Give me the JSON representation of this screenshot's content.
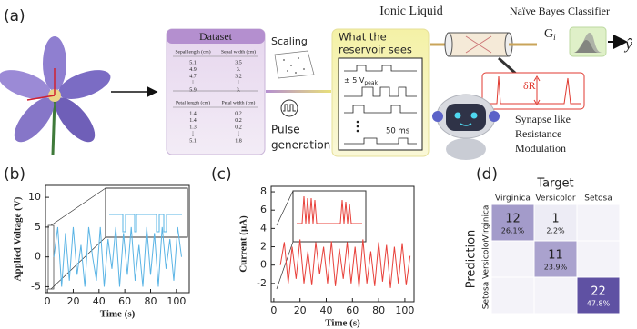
{
  "diagram": {
    "panel_label": "(a)",
    "dataset": {
      "title": "Dataset",
      "sepal_header": [
        "Sepal length (cm)",
        "Sepal width (cm)"
      ],
      "sepal_rows": [
        [
          "5.1",
          "3.5"
        ],
        [
          "4.9",
          "3."
        ],
        [
          "4.7",
          "3.2"
        ],
        [
          "⋮",
          "⋮"
        ],
        [
          "5.9",
          "3."
        ]
      ],
      "petal_header": [
        "Petal length (cm)",
        "Petal width (cm)"
      ],
      "petal_rows": [
        [
          "1.4",
          "0.2"
        ],
        [
          "1.4",
          "0.2"
        ],
        [
          "1.3",
          "0.2"
        ],
        [
          "⋮",
          "⋮"
        ],
        [
          "5.1",
          "1.8"
        ]
      ]
    },
    "scaling": "Scaling",
    "pulse_generation": [
      "Pulse",
      "generation"
    ],
    "reservoir_title": [
      "What the",
      "reservoir sees"
    ],
    "vpeak": "± 5 V",
    "vpeak_sub": "peak",
    "duration": "50 ms",
    "ionic_liquid": "Ionic Liquid",
    "classifier": "Naïve Bayes Classifier",
    "conductance": "G",
    "conductance_sub": "i",
    "output": "ŷ",
    "delta_r": "δR",
    "synapse": [
      "Synapse like",
      "Resistance",
      "Modulation"
    ]
  },
  "chart_data": [
    {
      "type": "line",
      "panel_label": "(b)",
      "xlabel": "Time (s)",
      "ylabel": "Applied Voltage (V)",
      "x": [
        5,
        8,
        11,
        14,
        17,
        20,
        23,
        26,
        29,
        32,
        35,
        38,
        41,
        44,
        47,
        50,
        53,
        56,
        59,
        62,
        65,
        68,
        71,
        74,
        77,
        80,
        83,
        86,
        89,
        92,
        95,
        98,
        101,
        104
      ],
      "series": [
        {
          "color": "#5ab4e5",
          "values": [
            0,
            5,
            -5,
            4,
            -4,
            5,
            -3,
            2,
            -5,
            5,
            0,
            -4,
            5,
            -5,
            3,
            -2,
            5,
            -5,
            4,
            -3,
            5,
            -4,
            2,
            -5,
            5,
            -3,
            4,
            -5,
            5,
            -2,
            3,
            -4,
            5,
            0
          ]
        }
      ],
      "xlim": [
        -1.5,
        110
      ],
      "ylim": [
        -6,
        12
      ],
      "xticks": [
        0,
        20,
        40,
        60,
        80,
        100
      ],
      "yticks": [
        10,
        5,
        0,
        -5
      ]
    },
    {
      "type": "line",
      "panel_label": "(c)",
      "xlabel": "Time (s)",
      "ylabel": "Current (μA)",
      "x": [
        5,
        8,
        11,
        14,
        17,
        20,
        23,
        26,
        29,
        32,
        35,
        38,
        41,
        44,
        47,
        50,
        53,
        56,
        59,
        62,
        65,
        68,
        71,
        74,
        77,
        80,
        83,
        86,
        89,
        92,
        95,
        98,
        101,
        104
      ],
      "series": [
        {
          "color": "#e8403a",
          "values": [
            0,
            2.5,
            -2,
            2,
            -1.5,
            2.8,
            -2,
            1.5,
            -2.2,
            2.5,
            -1,
            2,
            -2,
            2.6,
            -2.3,
            1.8,
            -1.5,
            2.5,
            -2,
            2,
            -2.5,
            2.8,
            -2,
            1.5,
            -2.3,
            2.5,
            -1.8,
            2.2,
            -2.5,
            2,
            -2,
            2.4,
            -2.2,
            1
          ]
        }
      ],
      "xlim": [
        -2,
        107
      ],
      "ylim": [
        -4,
        8.6
      ],
      "xticks": [
        0,
        20,
        40,
        60,
        80,
        100
      ],
      "yticks": [
        8,
        6,
        4,
        2,
        0,
        -2
      ]
    },
    {
      "type": "heatmap",
      "panel_label": "(d)",
      "xlabel": "Target",
      "ylabel": "Prediction",
      "x_categories": [
        "Virginica",
        "Versicolor",
        "Setosa"
      ],
      "y_categories": [
        "Virginica",
        "Versicolor",
        "Setosa"
      ],
      "values": [
        [
          12,
          1,
          0
        ],
        [
          0,
          11,
          0
        ],
        [
          0,
          0,
          22
        ]
      ],
      "percent_labels": [
        [
          "26.1%",
          "2.2%",
          null
        ],
        [
          null,
          "23.9%",
          null
        ],
        [
          null,
          null,
          "47.8%"
        ]
      ],
      "cmap": [
        "#f4f3f9",
        "#5f51a3"
      ]
    }
  ]
}
